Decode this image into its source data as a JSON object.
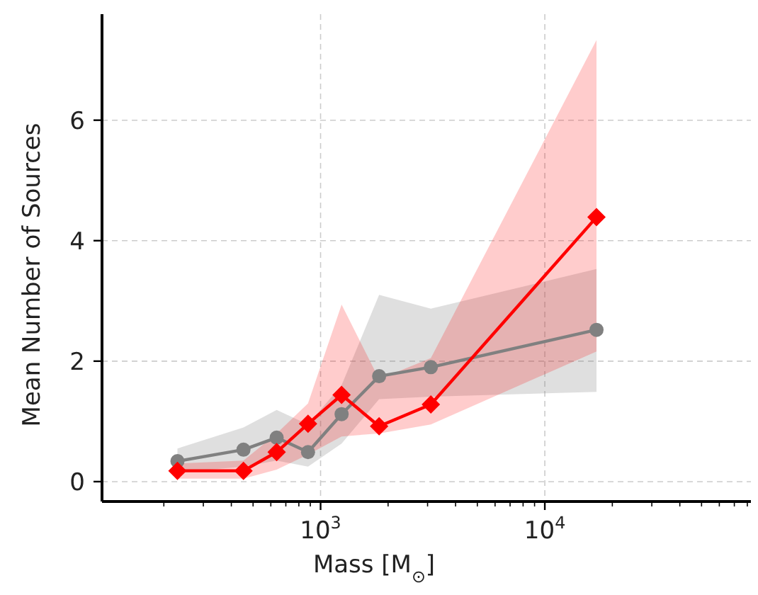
{
  "chart_data": {
    "type": "line",
    "xlabel": "Mass [M$_{⊙}$]",
    "ylabel": "Mean Number of Sources",
    "x": [
      230,
      453,
      637,
      879,
      1241,
      1824,
      3103,
      17000
    ],
    "series": [
      {
        "color": "#808080",
        "marker": "circle",
        "values": [
          0.34,
          0.53,
          0.73,
          0.49,
          1.12,
          1.75,
          1.9,
          2.52
        ],
        "lower": [
          0.15,
          0.25,
          0.35,
          0.25,
          0.63,
          1.37,
          1.41,
          1.49
        ],
        "upper": [
          0.55,
          0.9,
          1.19,
          0.95,
          1.6,
          3.1,
          2.87,
          3.53
        ]
      },
      {
        "color": "#ff0000",
        "marker": "diamond",
        "values": [
          0.18,
          0.18,
          0.49,
          0.96,
          1.44,
          0.92,
          1.28,
          4.39
        ],
        "lower": [
          0.05,
          0.05,
          0.2,
          0.45,
          0.75,
          0.8,
          0.95,
          2.16
        ],
        "upper": [
          0.3,
          0.35,
          0.8,
          1.3,
          2.94,
          1.7,
          2.05,
          7.33
        ]
      }
    ],
    "log": "x",
    "xlim": [
      106,
      83000
    ],
    "xticks": [
      {
        "value": 200,
        "label": null
      },
      {
        "value": 300,
        "label": null
      },
      {
        "value": 400,
        "label": null
      },
      {
        "value": 500,
        "label": null
      },
      {
        "value": 600,
        "label": null
      },
      {
        "value": 700,
        "label": null
      },
      {
        "value": 800,
        "label": null
      },
      {
        "value": 900,
        "label": null
      },
      {
        "value": 1000,
        "label": "10$^{3}$"
      },
      {
        "value": 2000,
        "label": null
      },
      {
        "value": 3000,
        "label": null
      },
      {
        "value": 4000,
        "label": null
      },
      {
        "value": 5000,
        "label": null
      },
      {
        "value": 6000,
        "label": null
      },
      {
        "value": 7000,
        "label": null
      },
      {
        "value": 8000,
        "label": null
      },
      {
        "value": 9000,
        "label": null
      },
      {
        "value": 10000,
        "label": "10$^{4}$"
      },
      {
        "value": 20000,
        "label": null
      },
      {
        "value": 30000,
        "label": null
      },
      {
        "value": 40000,
        "label": null
      },
      {
        "value": 50000,
        "label": null
      },
      {
        "value": 60000,
        "label": null
      },
      {
        "value": 70000,
        "label": null
      },
      {
        "value": 80000,
        "label": null
      }
    ],
    "ylim": [
      -0.33,
      7.76
    ],
    "yticks": [
      0,
      2,
      4,
      6
    ],
    "grid": true,
    "line_style": "solid"
  }
}
